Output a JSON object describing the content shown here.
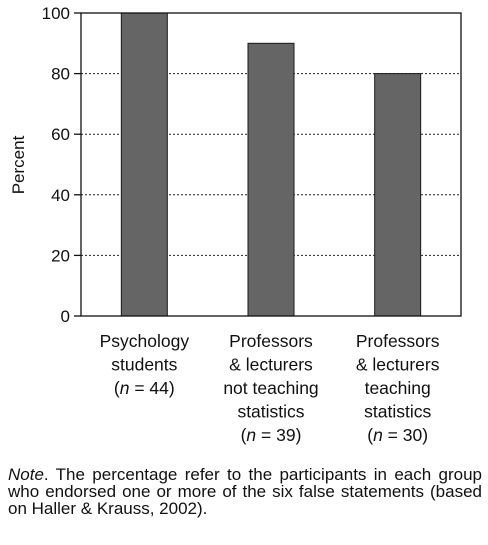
{
  "chart_data": {
    "type": "bar",
    "categories": [
      {
        "lines": [
          {
            "text": "Psychology"
          },
          {
            "text": "students"
          },
          {
            "italic": "n",
            "text": " = 44",
            "paren": true
          }
        ]
      },
      {
        "lines": [
          {
            "text": "Professors"
          },
          {
            "text": "& lecturers"
          },
          {
            "text": "not teaching"
          },
          {
            "text": "statistics"
          },
          {
            "italic": "n",
            "text": " = 39",
            "paren": true
          }
        ]
      },
      {
        "lines": [
          {
            "text": "Professors"
          },
          {
            "text": "& lecturers"
          },
          {
            "text": "teaching"
          },
          {
            "text": "statistics"
          },
          {
            "italic": "n",
            "text": " = 30",
            "paren": true
          }
        ]
      }
    ],
    "values": [
      100,
      90,
      80
    ],
    "ylabel": "Percent",
    "ylim": [
      0,
      100
    ],
    "yticks": [
      0,
      20,
      40,
      60,
      80,
      100
    ],
    "grid": "horizontal dotted",
    "bar_color": "#656565",
    "bar_edge_color": "#1a1a1a"
  },
  "note": {
    "label": "Note",
    "text": ". The percentage refer to the participants in each group who endorsed one or more of the six false statements (based on Haller & Krauss, 2002)."
  }
}
